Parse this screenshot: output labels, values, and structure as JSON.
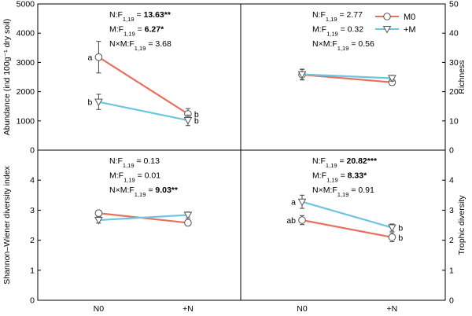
{
  "x_categories": [
    "N0",
    "+N"
  ],
  "legend": [
    {
      "label": "M0",
      "color": "#e8705e",
      "marker": "circle"
    },
    {
      "label": "+M",
      "color": "#6cc6e0",
      "marker": "triangle-down"
    }
  ],
  "chart_data": [
    {
      "type": "line",
      "panel": "top-left",
      "ylabel": "Abundance (ind 100g⁻¹ dry soil)",
      "ylim": [
        0,
        5000
      ],
      "yticks": [
        "0",
        "1000",
        "2000",
        "3000",
        "4000",
        "5000"
      ],
      "y_axis_side": "left",
      "categories": [
        "N0",
        "+N"
      ],
      "series": [
        {
          "name": "M0",
          "values": [
            3180,
            1240
          ],
          "errors": [
            540,
            180
          ],
          "letters": [
            "a",
            "b"
          ]
        },
        {
          "name": "+M",
          "values": [
            1650,
            1020
          ],
          "errors": [
            260,
            180
          ],
          "letters": [
            "b",
            "b"
          ]
        }
      ],
      "stats": [
        {
          "pre": "N:F",
          "sub": "1,19",
          "sep": " = ",
          "val": "13.63**",
          "bold": true
        },
        {
          "pre": "M:F",
          "sub": "1,19",
          "sep": " = ",
          "val": "6.27*",
          "bold": true
        },
        {
          "pre": "N×M:F",
          "sub": "1,19",
          "sep": " = ",
          "val": "3.68",
          "bold": false
        }
      ]
    },
    {
      "type": "line",
      "panel": "top-right",
      "ylabel": "Richness",
      "ylim": [
        0,
        50
      ],
      "yticks": [
        "0",
        "10",
        "20",
        "30",
        "40",
        "50"
      ],
      "y_axis_side": "right",
      "categories": [
        "N0",
        "+N"
      ],
      "series": [
        {
          "name": "M0",
          "values": [
            25.8,
            23.2
          ],
          "errors": [
            1.8,
            1.0
          ],
          "letters": [
            "",
            ""
          ]
        },
        {
          "name": "+M",
          "values": [
            25.9,
            24.6
          ],
          "errors": [
            1.8,
            1.0
          ],
          "letters": [
            "",
            ""
          ]
        }
      ],
      "stats": [
        {
          "pre": "N:F",
          "sub": "1,19",
          "sep": " = ",
          "val": "2.77",
          "bold": false
        },
        {
          "pre": "M:F",
          "sub": "1,19",
          "sep": " = ",
          "val": "0.32",
          "bold": false
        },
        {
          "pre": "N×M:F",
          "sub": "1,19",
          "sep": " = ",
          "val": "0.56",
          "bold": false
        }
      ]
    },
    {
      "type": "line",
      "panel": "bottom-left",
      "ylabel": "Shannon–Wiener diversity index",
      "ylim": [
        0,
        5
      ],
      "yticks": [
        "0",
        "1",
        "2",
        "3",
        "4"
      ],
      "y_axis_side": "left",
      "categories": [
        "N0",
        "+N"
      ],
      "series": [
        {
          "name": "M0",
          "values": [
            2.9,
            2.58
          ],
          "errors": [
            0.1,
            0.1
          ],
          "letters": [
            "",
            ""
          ]
        },
        {
          "name": "+M",
          "values": [
            2.67,
            2.84
          ],
          "errors": [
            0.1,
            0.1
          ],
          "letters": [
            "",
            ""
          ]
        }
      ],
      "stats": [
        {
          "pre": "N:F",
          "sub": "1,19",
          "sep": " = ",
          "val": "0.13",
          "bold": false
        },
        {
          "pre": "M:F",
          "sub": "1,19",
          "sep": " = ",
          "val": "0.01",
          "bold": false
        },
        {
          "pre": "N×M:F",
          "sub": "1,19",
          "sep": " = ",
          "val": "9.03**",
          "bold": true
        }
      ]
    },
    {
      "type": "line",
      "panel": "bottom-right",
      "ylabel": "Trophic diversity",
      "ylim": [
        0,
        5
      ],
      "yticks": [
        "0",
        "1",
        "2",
        "3",
        "4"
      ],
      "y_axis_side": "right",
      "categories": [
        "N0",
        "+N"
      ],
      "series": [
        {
          "name": "M0",
          "values": [
            2.67,
            2.1
          ],
          "errors": [
            0.15,
            0.15
          ],
          "letters": [
            "ab",
            "b"
          ]
        },
        {
          "name": "+M",
          "values": [
            3.28,
            2.42
          ],
          "errors": [
            0.22,
            0.12
          ],
          "letters": [
            "a",
            "b"
          ]
        }
      ],
      "stats": [
        {
          "pre": "N:F",
          "sub": "1,19",
          "sep": " = ",
          "val": "20.82***",
          "bold": true
        },
        {
          "pre": "M:F",
          "sub": "1,19",
          "sep": " = ",
          "val": "8.33*",
          "bold": true
        },
        {
          "pre": "N×M:F",
          "sub": "1,19",
          "sep": " = ",
          "val": "0.91",
          "bold": false
        }
      ]
    }
  ]
}
